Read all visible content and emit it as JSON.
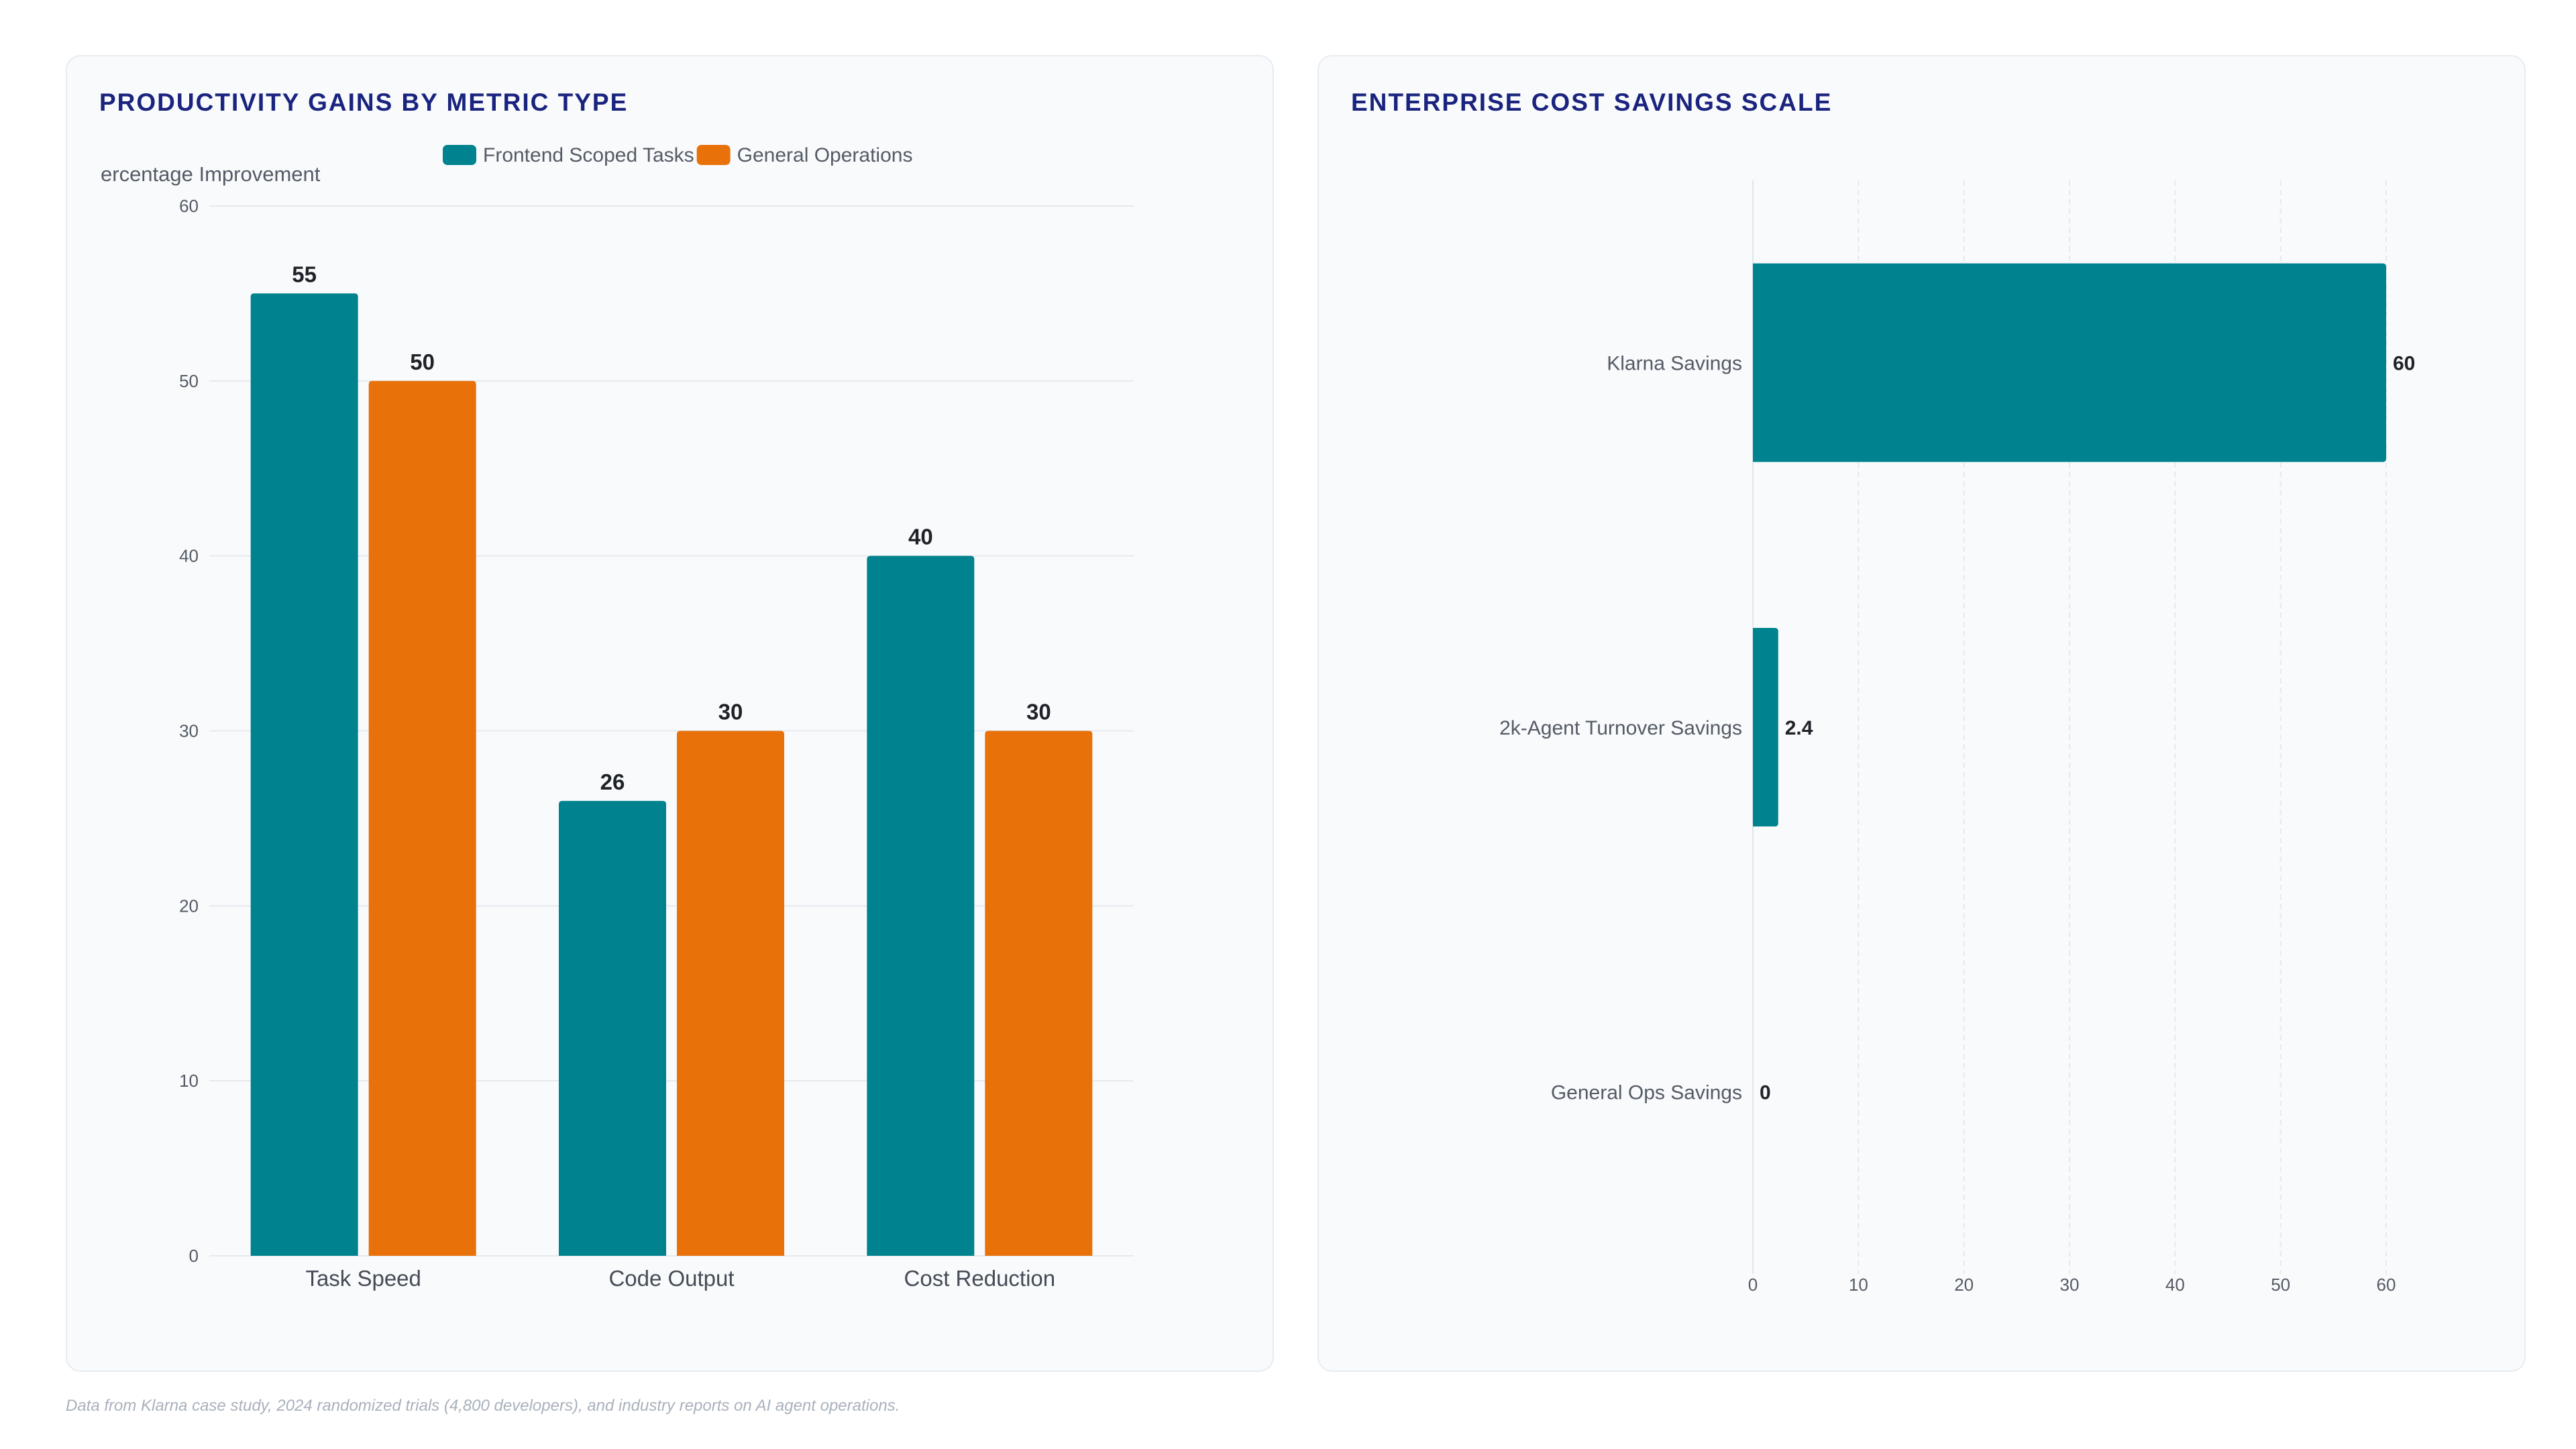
{
  "footnote": "Data from Klarna case study, 2024 randomized trials (4,800 developers), and industry reports on AI agent operations.",
  "chart_data": [
    {
      "type": "bar",
      "orientation": "vertical",
      "title": "PRODUCTIVITY GAINS BY METRIC TYPE",
      "ylabel": "ercentage Improvement",
      "xlabel": "",
      "categories": [
        "Task Speed",
        "Code Output",
        "Cost Reduction"
      ],
      "series": [
        {
          "name": "Frontend Scoped Tasks",
          "color": "#00838f",
          "values": [
            55,
            26,
            40
          ]
        },
        {
          "name": "General Operations",
          "color": "#e8710a",
          "values": [
            50,
            30,
            30
          ]
        }
      ],
      "ylim": [
        0,
        60
      ],
      "yticks": [
        0,
        10,
        20,
        30,
        40,
        50,
        60
      ],
      "grid": true,
      "legend": "top-center",
      "data_labels": true
    },
    {
      "type": "bar",
      "orientation": "horizontal",
      "title": "ENTERPRISE COST SAVINGS SCALE",
      "xlabel": "",
      "ylabel": "",
      "categories": [
        "Klarna Savings",
        "2k-Agent Turnover Savings",
        "General Ops Savings"
      ],
      "series": [
        {
          "color": "#00838f",
          "values": [
            60,
            2.4,
            0
          ]
        }
      ],
      "xlim": [
        0,
        60
      ],
      "xticks": [
        0,
        10,
        20,
        30,
        40,
        50,
        60
      ],
      "grid": true,
      "legend": "none",
      "data_labels": true
    }
  ]
}
